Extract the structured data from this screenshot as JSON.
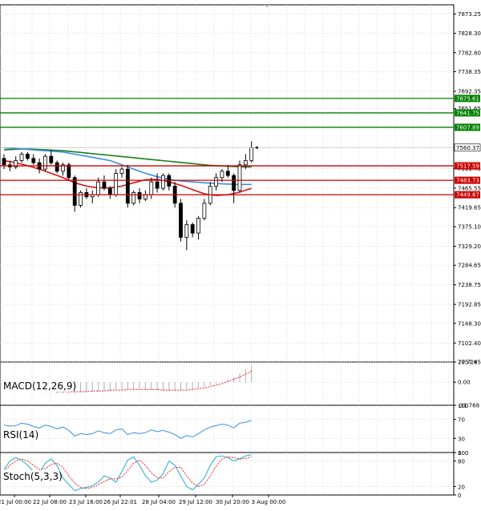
{
  "chart_data": [
    {
      "type": "candlestick",
      "title": "",
      "y_axis_ticks": [
        "7873.25",
        "7828.30",
        "7782.80",
        "7738.35",
        "7692.35",
        "7651.65",
        "7560.37",
        "7511.45",
        "7465.55",
        "7419.65",
        "7375.10",
        "7329.20",
        "7284.65",
        "7238.75",
        "7192.85",
        "7148.30",
        "7102.40",
        "7057.85"
      ],
      "y_range": [
        7057.85,
        7895
      ],
      "x_axis_ticks": [
        "21 Jul 00:00",
        "22 Jul 08:00",
        "23 Jul 16:00",
        "26 Jul 22:01",
        "28 Jul 04:00",
        "29 Jul 12:00",
        "30 Jul 20:00",
        "3 Aug 00:00"
      ],
      "horizontal_levels": [
        {
          "value": 7675.61,
          "label": "7675.61",
          "color": "#008000"
        },
        {
          "value": 7641.75,
          "label": "7641.75",
          "color": "#008000"
        },
        {
          "value": 7607.89,
          "label": "7607.89",
          "color": "#008000"
        },
        {
          "value": 7517.59,
          "label": "7517.59",
          "color": "#cc0000"
        },
        {
          "value": 7483.73,
          "label": "7483.73",
          "color": "#cc0000"
        },
        {
          "value": 7449.87,
          "label": "7449.87",
          "color": "#cc0000"
        }
      ],
      "current_price": {
        "value": 7560.37,
        "label": "7560.37"
      },
      "candles": [
        {
          "o": 7535,
          "h": 7545,
          "l": 7510,
          "c": 7520
        },
        {
          "o": 7520,
          "h": 7530,
          "l": 7505,
          "c": 7515
        },
        {
          "o": 7515,
          "h": 7540,
          "l": 7510,
          "c": 7530
        },
        {
          "o": 7530,
          "h": 7550,
          "l": 7525,
          "c": 7545
        },
        {
          "o": 7545,
          "h": 7550,
          "l": 7530,
          "c": 7535
        },
        {
          "o": 7535,
          "h": 7545,
          "l": 7520,
          "c": 7525
        },
        {
          "o": 7525,
          "h": 7535,
          "l": 7500,
          "c": 7510
        },
        {
          "o": 7510,
          "h": 7545,
          "l": 7505,
          "c": 7540
        },
        {
          "o": 7540,
          "h": 7555,
          "l": 7520,
          "c": 7525
        },
        {
          "o": 7525,
          "h": 7530,
          "l": 7500,
          "c": 7505
        },
        {
          "o": 7505,
          "h": 7525,
          "l": 7495,
          "c": 7520
        },
        {
          "o": 7520,
          "h": 7525,
          "l": 7485,
          "c": 7490
        },
        {
          "o": 7490,
          "h": 7495,
          "l": 7410,
          "c": 7425
        },
        {
          "o": 7425,
          "h": 7460,
          "l": 7420,
          "c": 7455
        },
        {
          "o": 7455,
          "h": 7465,
          "l": 7440,
          "c": 7445
        },
        {
          "o": 7445,
          "h": 7460,
          "l": 7430,
          "c": 7450
        },
        {
          "o": 7450,
          "h": 7490,
          "l": 7445,
          "c": 7480
        },
        {
          "o": 7480,
          "h": 7495,
          "l": 7460,
          "c": 7465
        },
        {
          "o": 7465,
          "h": 7470,
          "l": 7440,
          "c": 7450
        },
        {
          "o": 7450,
          "h": 7510,
          "l": 7445,
          "c": 7500
        },
        {
          "o": 7500,
          "h": 7515,
          "l": 7490,
          "c": 7510
        },
        {
          "o": 7510,
          "h": 7520,
          "l": 7420,
          "c": 7430
        },
        {
          "o": 7430,
          "h": 7460,
          "l": 7425,
          "c": 7455
        },
        {
          "o": 7455,
          "h": 7465,
          "l": 7430,
          "c": 7440
        },
        {
          "o": 7440,
          "h": 7460,
          "l": 7435,
          "c": 7450
        },
        {
          "o": 7450,
          "h": 7490,
          "l": 7440,
          "c": 7480
        },
        {
          "o": 7480,
          "h": 7500,
          "l": 7455,
          "c": 7465
        },
        {
          "o": 7465,
          "h": 7500,
          "l": 7460,
          "c": 7495
        },
        {
          "o": 7495,
          "h": 7500,
          "l": 7460,
          "c": 7470
        },
        {
          "o": 7470,
          "h": 7480,
          "l": 7420,
          "c": 7430
        },
        {
          "o": 7430,
          "h": 7440,
          "l": 7340,
          "c": 7350
        },
        {
          "o": 7350,
          "h": 7390,
          "l": 7320,
          "c": 7380
        },
        {
          "o": 7380,
          "h": 7385,
          "l": 7350,
          "c": 7360
        },
        {
          "o": 7360,
          "h": 7400,
          "l": 7345,
          "c": 7395
        },
        {
          "o": 7395,
          "h": 7440,
          "l": 7390,
          "c": 7430
        },
        {
          "o": 7430,
          "h": 7480,
          "l": 7425,
          "c": 7470
        },
        {
          "o": 7470,
          "h": 7500,
          "l": 7460,
          "c": 7490
        },
        {
          "o": 7490,
          "h": 7510,
          "l": 7480,
          "c": 7505
        },
        {
          "o": 7505,
          "h": 7520,
          "l": 7490,
          "c": 7495
        },
        {
          "o": 7495,
          "h": 7500,
          "l": 7430,
          "c": 7460
        },
        {
          "o": 7460,
          "h": 7530,
          "l": 7455,
          "c": 7520
        },
        {
          "o": 7520,
          "h": 7545,
          "l": 7510,
          "c": 7530
        },
        {
          "o": 7530,
          "h": 7575,
          "l": 7525,
          "c": 7560
        }
      ],
      "ma_green": [
        7555,
        7556,
        7557,
        7557,
        7556,
        7555,
        7554,
        7553,
        7551,
        7549,
        7547,
        7545,
        7543,
        7541,
        7539,
        7537,
        7535,
        7533,
        7531,
        7529,
        7527,
        7525,
        7523,
        7521,
        7519,
        7518,
        7517,
        7516,
        7515,
        7515
      ],
      "ma_blue": [
        7560,
        7558,
        7556,
        7554,
        7552,
        7550,
        7545,
        7540,
        7535,
        7530,
        7520,
        7510,
        7500,
        7492,
        7486,
        7482,
        7480,
        7478,
        7476,
        7475,
        7474,
        7474
      ],
      "ma_red": [
        7530,
        7525,
        7518,
        7510,
        7500,
        7490,
        7478,
        7470,
        7466,
        7466,
        7470,
        7478,
        7485,
        7486,
        7480,
        7472,
        7462,
        7452,
        7448,
        7450,
        7456,
        7465
      ]
    },
    {
      "type": "line",
      "name": "macd",
      "label": "MACD(12,26,9)",
      "y_axis_ticks": [
        "27.724",
        "0.00",
        "-31.768"
      ],
      "y_range": [
        -31.768,
        27.724
      ],
      "histogram": [
        -5,
        -7,
        -9,
        -10,
        -11,
        -12,
        -13,
        -14,
        -14,
        -15,
        -15,
        -15,
        -15,
        -14,
        -14,
        -13,
        -13,
        -12,
        -12,
        -11,
        -11,
        -10,
        -10,
        -10,
        -10,
        -11,
        -11,
        -12,
        -12,
        -12,
        -12,
        -11,
        -10,
        -8,
        -6,
        -4,
        -2,
        1,
        4,
        7,
        12,
        18,
        24
      ],
      "signal": [
        -5,
        -6,
        -7,
        -8,
        -9,
        -10,
        -11,
        -12,
        -12,
        -13,
        -13,
        -13,
        -13,
        -13,
        -13,
        -12,
        -12,
        -12,
        -11,
        -11,
        -11,
        -10,
        -10,
        -10,
        -10,
        -10,
        -10,
        -11,
        -11,
        -11,
        -11,
        -11,
        -10,
        -9,
        -8,
        -6,
        -4,
        -2,
        1,
        4,
        7,
        11,
        15
      ]
    },
    {
      "type": "line",
      "name": "rsi",
      "label": "RSI(14)",
      "y_axis_ticks": [
        "100",
        "70",
        "30",
        "0"
      ],
      "y_range": [
        0,
        100
      ],
      "values": [
        58,
        56,
        57,
        62,
        60,
        55,
        52,
        58,
        55,
        50,
        54,
        47,
        35,
        40,
        38,
        40,
        46,
        42,
        40,
        48,
        50,
        38,
        42,
        40,
        42,
        48,
        44,
        47,
        43,
        38,
        30,
        36,
        33,
        40,
        48,
        54,
        57,
        60,
        58,
        52,
        62,
        64,
        68
      ]
    },
    {
      "type": "line",
      "name": "stochastic",
      "label": "Stoch(5,3,3)",
      "y_axis_ticks": [
        "100",
        "80",
        "20",
        "0"
      ],
      "y_range": [
        0,
        100
      ],
      "k": [
        60,
        80,
        88,
        82,
        70,
        55,
        52,
        75,
        85,
        70,
        40,
        25,
        10,
        15,
        18,
        22,
        30,
        45,
        40,
        30,
        55,
        82,
        90,
        70,
        45,
        30,
        35,
        50,
        80,
        70,
        45,
        20,
        12,
        25,
        40,
        70,
        90,
        92,
        88,
        80,
        85,
        92,
        95
      ],
      "d": [
        55,
        70,
        80,
        85,
        80,
        70,
        60,
        62,
        72,
        75,
        65,
        45,
        28,
        18,
        15,
        18,
        24,
        32,
        38,
        38,
        42,
        58,
        75,
        82,
        70,
        52,
        40,
        40,
        55,
        65,
        65,
        45,
        28,
        20,
        25,
        45,
        68,
        85,
        90,
        88,
        85,
        86,
        90
      ]
    }
  ]
}
